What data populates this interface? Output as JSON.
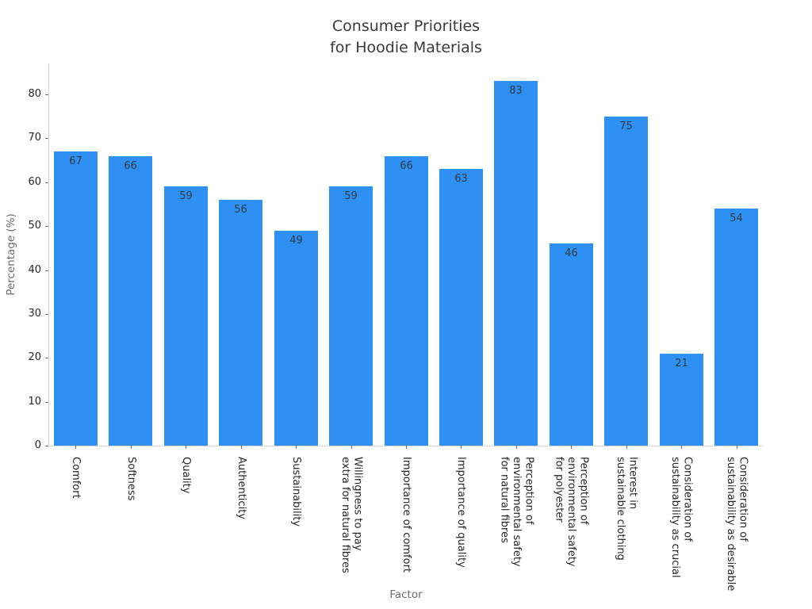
{
  "chart_data": {
    "type": "bar",
    "title": "Consumer Priorities\nfor Hoodie Materials",
    "xlabel": "Factor",
    "ylabel": "Percentage (%)",
    "categories": [
      "Comfort",
      "Softness",
      "Quality",
      "Authenticity",
      "Sustainability",
      "Willingness to pay\nextra for natural fibres",
      "Importance of comfort",
      "Importance of quality",
      "Perception of\nenvironmental safety\nfor natural fibres",
      "Perception of\nenvironmental safety\nfor polyester",
      "Interest in\nsustainable clothing",
      "Consideration of\nsustainability as crucial",
      "Consideration of\nsustainability as desirable"
    ],
    "values": [
      67,
      66,
      59,
      56,
      49,
      59,
      66,
      63,
      83,
      46,
      75,
      21,
      54
    ],
    "value_labels_shown": true,
    "yticks": [
      0,
      10,
      20,
      30,
      40,
      50,
      60,
      70,
      80
    ],
    "ylim": [
      0,
      87
    ],
    "grid": false,
    "legend": null,
    "colors": {
      "bar": "#2e90f2",
      "value_label": "#2f3b43",
      "tick_label": "#262626",
      "axis_label": "#6b6b6b",
      "title": "#3a3a3a",
      "spine": "#d6d6d6",
      "background": "#ffffff"
    }
  }
}
